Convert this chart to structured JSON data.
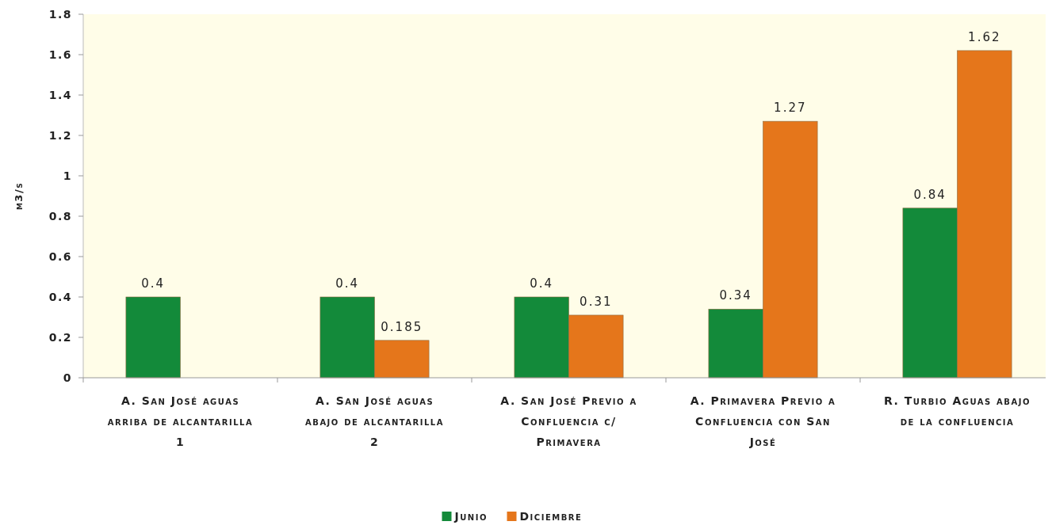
{
  "chart_data": {
    "type": "bar",
    "ylabel": "m3/s",
    "categories": [
      "A. San José aguas arriba de alcantarilla 1",
      "A. San José aguas abajo de alcantarilla 2",
      "A. San José Previo a Confluencia c/ Primavera",
      "A. Primavera Previo a Confluencia con San José",
      "R. Turbio Aguas abajo de la confluencia"
    ],
    "series": [
      {
        "name": "Junio",
        "color": "#138a3a",
        "values": [
          0.4,
          0.4,
          0.4,
          0.34,
          0.84
        ]
      },
      {
        "name": "Diciembre",
        "color": "#e5761b",
        "values": [
          null,
          0.185,
          0.31,
          1.27,
          1.62
        ]
      }
    ],
    "ylim": [
      0,
      1.8
    ],
    "yticks": [
      0,
      0.2,
      0.4,
      0.6,
      0.8,
      1,
      1.2,
      1.4,
      1.6,
      1.8
    ],
    "data_labels": true,
    "grid": false,
    "legend": "bottom"
  }
}
